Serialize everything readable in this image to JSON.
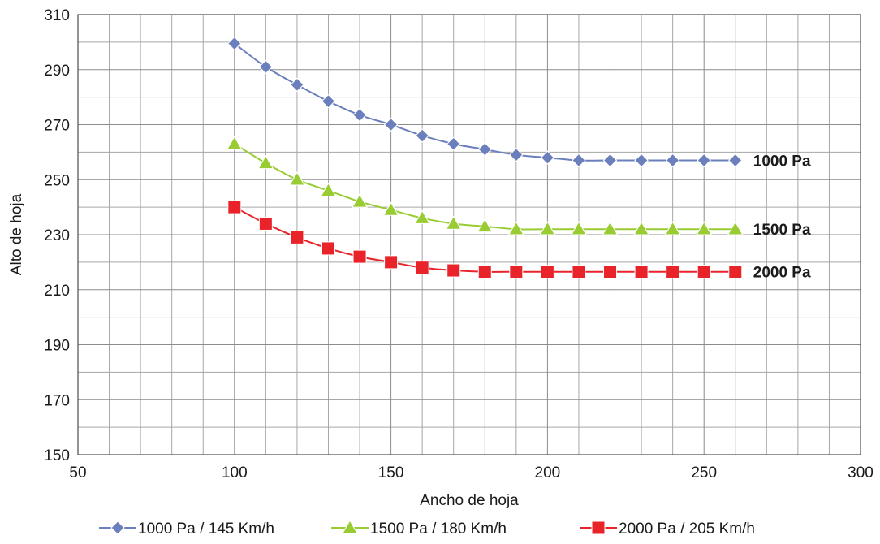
{
  "chart_data": {
    "type": "line",
    "xlabel": "Ancho de hoja",
    "ylabel": "Alto de hoja",
    "xlim": [
      50,
      300
    ],
    "ylim": [
      150,
      310
    ],
    "xticks": [
      50,
      100,
      150,
      200,
      250,
      300
    ],
    "yticks": [
      150,
      170,
      190,
      210,
      230,
      250,
      270,
      290,
      310
    ],
    "x_minor_step": 10,
    "y_minor_step": 10,
    "grid": true,
    "legend_position": "bottom",
    "x": [
      100,
      110,
      120,
      130,
      140,
      150,
      160,
      170,
      180,
      190,
      200,
      210,
      220,
      230,
      240,
      250,
      260
    ],
    "series": [
      {
        "name": "1000 Pa / 145 Km/h",
        "end_label": "1000 Pa",
        "color": "#6b7fbd",
        "marker": "diamond",
        "values": [
          299.5,
          291,
          284.5,
          278.5,
          273.5,
          270,
          266,
          263,
          261,
          259,
          258,
          257,
          257,
          257,
          257,
          257,
          257
        ]
      },
      {
        "name": "1500 Pa / 180 Km/h",
        "end_label": "1500 Pa",
        "color": "#99cc33",
        "marker": "triangle",
        "values": [
          263,
          256,
          250,
          246,
          242,
          239,
          236,
          234,
          233,
          232,
          232,
          232,
          232,
          232,
          232,
          232,
          232
        ]
      },
      {
        "name": "2000 Pa / 205 Km/h",
        "end_label": "2000 Pa",
        "color": "#e8242a",
        "marker": "square",
        "values": [
          240,
          234,
          229,
          225,
          222,
          220,
          218,
          217,
          216.5,
          216.5,
          216.5,
          216.5,
          216.5,
          216.5,
          216.5,
          216.5,
          216.5
        ]
      }
    ]
  }
}
